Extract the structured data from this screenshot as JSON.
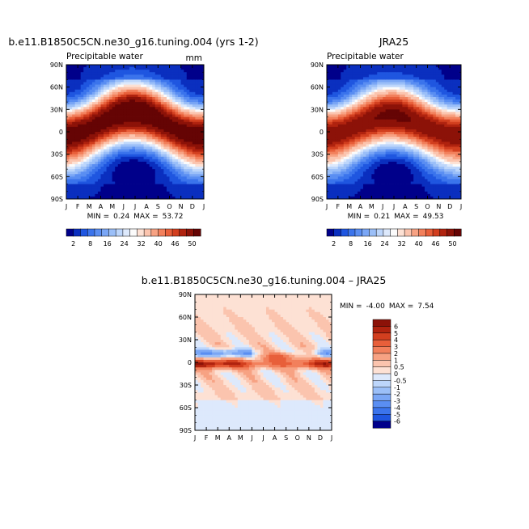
{
  "chart_data": [
    {
      "type": "heatmap",
      "title": "b.e11.B1850C5CN.ne30_g16.tuning.004 (yrs 1-2)",
      "subtitle": "Precipitable water",
      "units": "mm",
      "x": [
        "J",
        "F",
        "M",
        "A",
        "M",
        "J",
        "J",
        "A",
        "S",
        "O",
        "N",
        "D",
        "J"
      ],
      "yticks": [
        "90N",
        "60N",
        "30N",
        "0",
        "30S",
        "60S",
        "90S"
      ],
      "ylim": [
        -90,
        90
      ],
      "stats": {
        "min_label": "MIN =",
        "min": "0.24",
        "max_label": "MAX =",
        "max": "53.72"
      },
      "itcz": {
        "lat_start": -4,
        "lat_mid": 10,
        "peak_month": 7.5,
        "peak": 54
      },
      "colorbar": {
        "levels": [
          "2",
          "8",
          "16",
          "24",
          "32",
          "40",
          "46",
          "50"
        ],
        "colors": [
          "#00008a",
          "#0a2fbf",
          "#1f56e0",
          "#3b74ec",
          "#5a8ef2",
          "#7aa6f5",
          "#9bbff8",
          "#bdd6fb",
          "#dde9fc",
          "#fbfbfb",
          "#fde1d4",
          "#fbc4ae",
          "#f7a283",
          "#f2805c",
          "#e85f3a",
          "#d23f1f",
          "#b0230f",
          "#8c1208",
          "#650404"
        ],
        "bounds": [
          2,
          5,
          8,
          11,
          14,
          16,
          19,
          22,
          24,
          26,
          28,
          32,
          35,
          38,
          40,
          43,
          46,
          50
        ]
      }
    },
    {
      "type": "heatmap",
      "title": "JRA25",
      "subtitle": "Precipitable water",
      "x": [
        "J",
        "F",
        "M",
        "A",
        "M",
        "J",
        "J",
        "A",
        "S",
        "O",
        "N",
        "D",
        "J"
      ],
      "yticks": [
        "90N",
        "60N",
        "30N",
        "0",
        "30S",
        "60S",
        "90S"
      ],
      "ylim": [
        -90,
        90
      ],
      "stats": {
        "min_label": "MIN =",
        "min": "0.21",
        "max_label": "MAX =",
        "max": "49.53"
      },
      "itcz": {
        "lat_start": -3,
        "lat_mid": 8,
        "peak_month": 7.5,
        "peak": 50
      },
      "colorbar": {
        "levels": [
          "2",
          "8",
          "16",
          "24",
          "32",
          "40",
          "46",
          "50"
        ]
      }
    },
    {
      "type": "heatmap",
      "title": "b.e11.B1850C5CN.ne30_g16.tuning.004 – JRA25",
      "x": [
        "J",
        "F",
        "M",
        "A",
        "M",
        "J",
        "J",
        "A",
        "S",
        "O",
        "N",
        "D",
        "J"
      ],
      "yticks": [
        "90N",
        "60N",
        "30N",
        "0",
        "30S",
        "60S",
        "90S"
      ],
      "ylim": [
        -90,
        90
      ],
      "stats": {
        "min_label": "MIN =",
        "min": "-4.00",
        "max_label": "MAX =",
        "max": "7.54"
      },
      "colorbar": {
        "levels": [
          "6",
          "5",
          "4",
          "3",
          "2",
          "1",
          "0.5",
          "0",
          "-0.5",
          "-1",
          "-2",
          "-3",
          "-4",
          "-5",
          "-6"
        ],
        "colors": [
          "#8c1208",
          "#b0230f",
          "#d23f1f",
          "#e85f3a",
          "#f2805c",
          "#f7a283",
          "#fbc4ae",
          "#fde1d4",
          "#dde9fc",
          "#bdd6fb",
          "#9bbff8",
          "#7aa6f5",
          "#5a8ef2",
          "#3b74ec",
          "#1f56e0",
          "#00008a"
        ],
        "bounds": [
          6,
          5,
          4,
          3,
          2,
          1,
          0.5,
          0,
          -0.5,
          -1,
          -2,
          -3,
          -4,
          -5,
          -6
        ]
      }
    }
  ]
}
